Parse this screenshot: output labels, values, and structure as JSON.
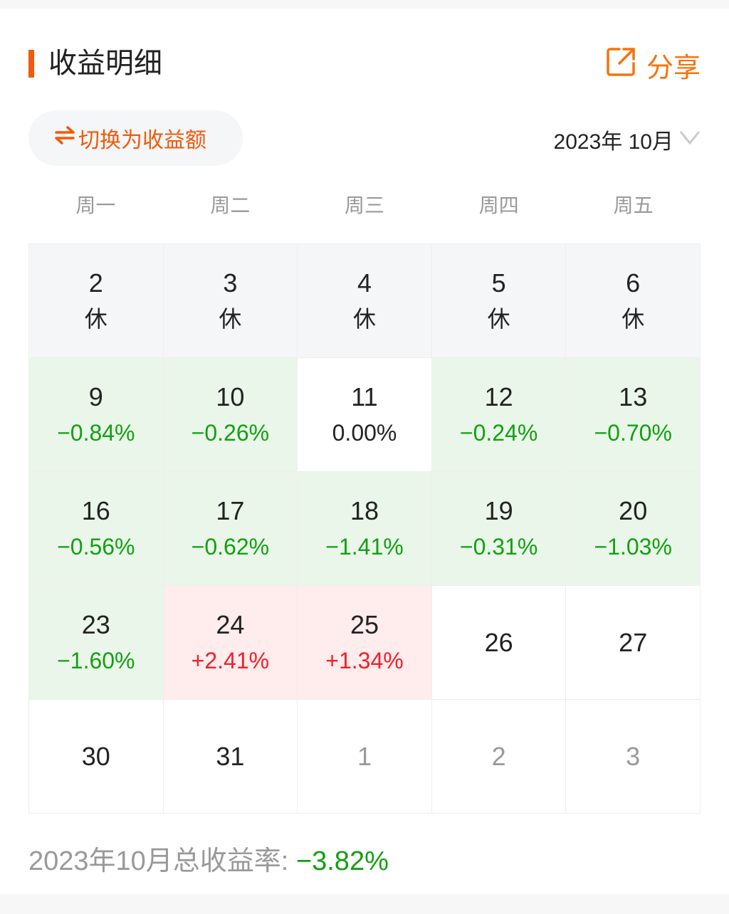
{
  "header": {
    "title": "收益明细",
    "share_label": "分享",
    "share_icon": "share-external-icon"
  },
  "toolbar": {
    "toggle_label": "切换为收益额",
    "toggle_icon": "swap-arrows-icon",
    "month_label": "2023年 10月",
    "month_icon": "chevron-down-icon"
  },
  "colors": {
    "accent": "#f05a0a",
    "down": "#12a012",
    "up": "#f0202a",
    "down_bg": "#eaf6ea",
    "up_bg": "#ffecec",
    "holiday_bg": "#f5f6f8"
  },
  "weekdays": [
    "周一",
    "周二",
    "周三",
    "周四",
    "周五"
  ],
  "days": [
    {
      "day": "2",
      "value": "休",
      "type": "holiday"
    },
    {
      "day": "3",
      "value": "休",
      "type": "holiday"
    },
    {
      "day": "4",
      "value": "休",
      "type": "holiday"
    },
    {
      "day": "5",
      "value": "休",
      "type": "holiday"
    },
    {
      "day": "6",
      "value": "休",
      "type": "holiday"
    },
    {
      "day": "9",
      "value": "−0.84%",
      "type": "down"
    },
    {
      "day": "10",
      "value": "−0.26%",
      "type": "down"
    },
    {
      "day": "11",
      "value": "0.00%",
      "type": "flat"
    },
    {
      "day": "12",
      "value": "−0.24%",
      "type": "down"
    },
    {
      "day": "13",
      "value": "−0.70%",
      "type": "down"
    },
    {
      "day": "16",
      "value": "−0.56%",
      "type": "down"
    },
    {
      "day": "17",
      "value": "−0.62%",
      "type": "down"
    },
    {
      "day": "18",
      "value": "−1.41%",
      "type": "down"
    },
    {
      "day": "19",
      "value": "−0.31%",
      "type": "down"
    },
    {
      "day": "20",
      "value": "−1.03%",
      "type": "down"
    },
    {
      "day": "23",
      "value": "−1.60%",
      "type": "down"
    },
    {
      "day": "24",
      "value": "+2.41%",
      "type": "up"
    },
    {
      "day": "25",
      "value": "+1.34%",
      "type": "up"
    },
    {
      "day": "26",
      "type": "future"
    },
    {
      "day": "27",
      "type": "future"
    },
    {
      "day": "30",
      "type": "future"
    },
    {
      "day": "31",
      "type": "future"
    },
    {
      "day": "1",
      "type": "other"
    },
    {
      "day": "2",
      "type": "other"
    },
    {
      "day": "3",
      "type": "other"
    }
  ],
  "summary": {
    "label": "2023年10月总收益率: ",
    "value": "−3.82%"
  }
}
